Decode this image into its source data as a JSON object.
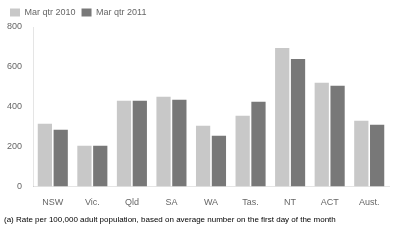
{
  "chart_data": {
    "type": "bar",
    "categories": [
      "NSW",
      "Vic.",
      "Qld",
      "SA",
      "WA",
      "Tas.",
      "NT",
      "ACT",
      "Aust."
    ],
    "series": [
      {
        "name": "Mar qtr 2010",
        "color": "#c8c8c8",
        "values": [
          315,
          205,
          430,
          450,
          305,
          355,
          695,
          520,
          330
        ]
      },
      {
        "name": "Mar qtr 2011",
        "color": "#787878",
        "values": [
          285,
          205,
          430,
          435,
          255,
          425,
          640,
          505,
          310
        ]
      }
    ],
    "ylim": [
      0,
      800
    ],
    "yticks": [
      0,
      200,
      400,
      600,
      800
    ],
    "grid": false,
    "legend": "upper left",
    "footnote": "(a) Rate per 100,000 adult population, based on average number on the first day of the month"
  }
}
